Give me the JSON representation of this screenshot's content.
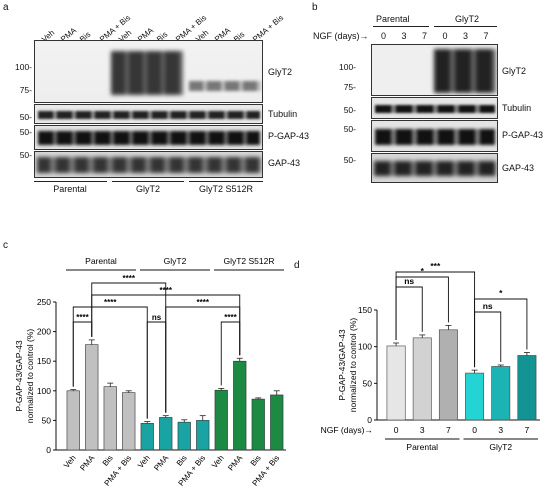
{
  "panels": {
    "a": "a",
    "b": "b",
    "c": "c",
    "d": "d"
  },
  "panel_a": {
    "lanes": [
      "Veh",
      "PMA",
      "Bis",
      "PMA + Bis",
      "Veh",
      "PMA",
      "Bis",
      "PMA + Bis",
      "Veh",
      "PMA",
      "Bis",
      "PMA + Bis"
    ],
    "mw": [
      "100-",
      "75-",
      "50-",
      "50-",
      "50-"
    ],
    "bands": [
      "GlyT2",
      "Tubulin",
      "P-GAP-43",
      "GAP-43"
    ],
    "groups": [
      "Parental",
      "GlyT2",
      "GlyT2 S512R"
    ]
  },
  "panel_b": {
    "groups": [
      "Parental",
      "GlyT2"
    ],
    "ngf_label": "NGF (days)→",
    "days": [
      "0",
      "3",
      "7",
      "0",
      "3",
      "7"
    ],
    "mw": [
      "100-",
      "75-",
      "50-",
      "50-",
      "50-"
    ],
    "bands": [
      "GlyT2",
      "Tubulin",
      "P-GAP-43",
      "GAP-43"
    ]
  },
  "chart_data": [
    {
      "type": "bar",
      "panel": "c",
      "categories": [
        "Veh",
        "PMA",
        "Bis",
        "PMA + Bis",
        "Veh",
        "PMA",
        "Bis",
        "PMA + Bis",
        "Veh",
        "PMA",
        "Bis",
        "PMA + Bis"
      ],
      "groups": [
        "Parental",
        "GlyT2",
        "GlyT2 S512R"
      ],
      "values": [
        100,
        178,
        107,
        97,
        45,
        55,
        47,
        50,
        101,
        150,
        86,
        93
      ],
      "errors": [
        2,
        8,
        6,
        3,
        3,
        3,
        4,
        8,
        3,
        5,
        2,
        7
      ],
      "colors": [
        "#c0c0c0",
        "#c0c0c0",
        "#c0c0c0",
        "#c0c0c0",
        "#1aa3a3",
        "#1aa3a3",
        "#1aa3a3",
        "#1aa3a3",
        "#1d8a43",
        "#1d8a43",
        "#1d8a43",
        "#1d8a43"
      ],
      "ylabel": "P-GAP-43/GAP-43\nnormalized to control (%)",
      "ylim": [
        0,
        250
      ],
      "yticks": [
        "0",
        "50",
        "100",
        "150",
        "200",
        "250"
      ],
      "significance": [
        "****",
        "****",
        "****",
        "ns",
        "****",
        "****",
        "****"
      ]
    },
    {
      "type": "bar",
      "panel": "d",
      "categories": [
        "0",
        "3",
        "7",
        "0",
        "3",
        "7"
      ],
      "groups": [
        "Parental",
        "GlyT2"
      ],
      "xlabel": "NGF (days)→",
      "values": [
        101,
        112,
        123,
        64,
        73,
        88
      ],
      "errors": [
        4,
        4,
        6,
        4,
        2,
        4
      ],
      "colors": [
        "#e6e6e6",
        "#d2d2d2",
        "#b0b0b0",
        "#24d3d3",
        "#1bb3b3",
        "#139393"
      ],
      "ylabel": "P-GAP-43/GAP-43\nnormalized to control (%)",
      "ylim": [
        0,
        150
      ],
      "yticks": [
        "0",
        "50",
        "100",
        "150"
      ],
      "significance": [
        "***",
        "ns",
        "*",
        "ns",
        "*"
      ]
    }
  ]
}
